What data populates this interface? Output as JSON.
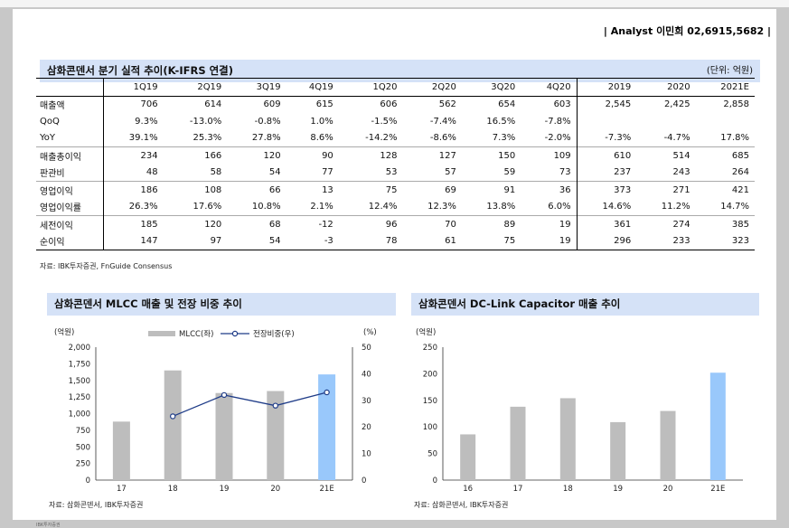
{
  "analyst": "| Analyst 이민희 02,6915,5682 |",
  "table_section": {
    "title": "삼화콘덴서 분기 실적 추이(K-IFRS 연결)",
    "unit": "(단위: 억원)",
    "columns": [
      "1Q19",
      "2Q19",
      "3Q19",
      "4Q19",
      "1Q20",
      "2Q20",
      "3Q20",
      "4Q20",
      "2019",
      "2020",
      "2021E"
    ],
    "rows": [
      {
        "label": "매출액",
        "values": [
          "706",
          "614",
          "609",
          "615",
          "606",
          "562",
          "654",
          "603",
          "2,545",
          "2,425",
          "2,858"
        ]
      },
      {
        "label": "QoQ",
        "values": [
          "9.3%",
          "-13.0%",
          "-0.8%",
          "1.0%",
          "-1.5%",
          "-7.4%",
          "16.5%",
          "-7.8%",
          "",
          "",
          ""
        ]
      },
      {
        "label": "YoY",
        "values": [
          "39.1%",
          "25.3%",
          "27.8%",
          "8.6%",
          "-14.2%",
          "-8.6%",
          "7.3%",
          "-2.0%",
          "-7.3%",
          "-4.7%",
          "17.8%"
        ]
      },
      {
        "label": "매출총이익",
        "values": [
          "234",
          "166",
          "120",
          "90",
          "128",
          "127",
          "150",
          "109",
          "610",
          "514",
          "685"
        ]
      },
      {
        "label": "판관비",
        "values": [
          "48",
          "58",
          "54",
          "77",
          "53",
          "57",
          "59",
          "73",
          "237",
          "243",
          "264"
        ]
      },
      {
        "label": "영업이익",
        "values": [
          "186",
          "108",
          "66",
          "13",
          "75",
          "69",
          "91",
          "36",
          "373",
          "271",
          "421"
        ]
      },
      {
        "label": "영업이익률",
        "values": [
          "26.3%",
          "17.6%",
          "10.8%",
          "2.1%",
          "12.4%",
          "12.3%",
          "13.8%",
          "6.0%",
          "14.6%",
          "11.2%",
          "14.7%"
        ]
      },
      {
        "label": "세전이익",
        "values": [
          "185",
          "120",
          "68",
          "-12",
          "96",
          "70",
          "89",
          "19",
          "361",
          "274",
          "385"
        ]
      },
      {
        "label": "순이익",
        "values": [
          "147",
          "97",
          "54",
          "-3",
          "78",
          "61",
          "75",
          "19",
          "296",
          "233",
          "323"
        ]
      }
    ],
    "source": "자료: IBK투자증권, FnGuide Consensus"
  },
  "chart_data": [
    {
      "type": "bar",
      "title": "삼화콘덴서 MLCC 매출 및 전장 비중 추이",
      "categories": [
        "17",
        "18",
        "19",
        "20",
        "21E"
      ],
      "ylabel": "(억원)",
      "y2label": "(%)",
      "ylim": [
        0,
        2000
      ],
      "y2lim": [
        0,
        50
      ],
      "yticks": [
        "0",
        "250",
        "500",
        "750",
        "1,000",
        "1,250",
        "1,500",
        "1,750",
        "2,000"
      ],
      "y2ticks": [
        "0",
        "10",
        "20",
        "30",
        "40",
        "50"
      ],
      "legend_placement": "top",
      "series": [
        {
          "name": "MLCC(좌)",
          "type": "bar",
          "values": [
            880,
            1650,
            1310,
            1340,
            1590
          ],
          "color": "#bdbdbd",
          "highlight_color": "#99c8fb"
        },
        {
          "name": "전장비중(우)",
          "type": "line",
          "values": [
            null,
            24,
            32,
            28,
            33
          ],
          "color": "#1f3c88"
        }
      ],
      "source": "자료: 삼화콘덴서, IBK투자증권"
    },
    {
      "type": "bar",
      "title": "삼화콘덴서 DC-Link Capacitor 매출 추이",
      "categories": [
        "16",
        "17",
        "18",
        "19",
        "20",
        "21E"
      ],
      "ylabel": "(억원)",
      "ylim": [
        0,
        250
      ],
      "yticks": [
        "0",
        "50",
        "100",
        "150",
        "200",
        "250"
      ],
      "series": [
        {
          "values": [
            86,
            138,
            154,
            109,
            130,
            202
          ],
          "color": "#bdbdbd",
          "highlight_color": "#99c8fb"
        }
      ],
      "source": "자료: 삼화콘덴서, IBK투자증권"
    }
  ],
  "footer": "IBK투자증권"
}
